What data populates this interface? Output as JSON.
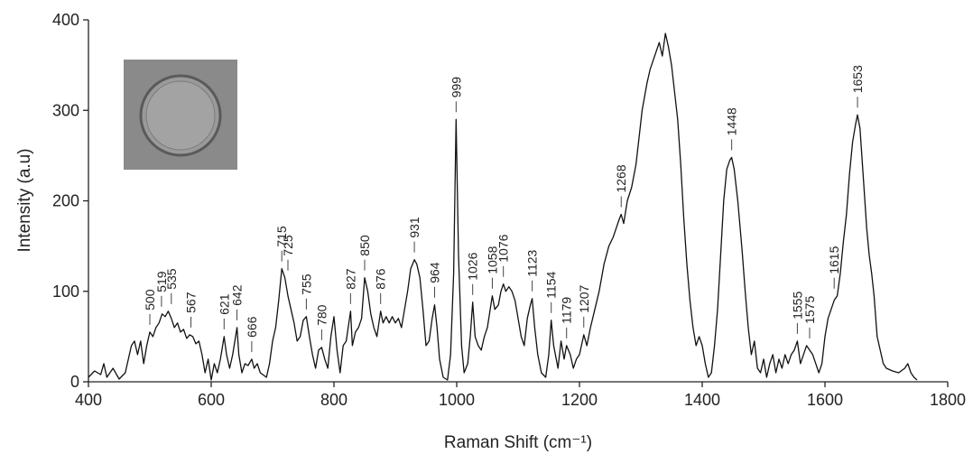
{
  "chart_data": {
    "type": "line",
    "x_label": "Raman Shift (cm⁻¹)",
    "y_label": "Intensity (a.u)",
    "color": "#111111",
    "xlim": [
      400,
      1800
    ],
    "xticks": [
      400,
      600,
      800,
      1000,
      1200,
      1400,
      1600,
      1800
    ],
    "ylim": [
      0,
      400
    ],
    "yticks": [
      0,
      100,
      200,
      300,
      400
    ],
    "x": [
      400,
      410,
      420,
      425,
      430,
      440,
      450,
      460,
      470,
      475,
      480,
      485,
      490,
      495,
      500,
      505,
      510,
      515,
      520,
      525,
      530,
      535,
      540,
      545,
      550,
      555,
      560,
      565,
      570,
      575,
      580,
      585,
      590,
      595,
      600,
      605,
      610,
      615,
      621,
      625,
      630,
      635,
      642,
      645,
      650,
      655,
      660,
      666,
      670,
      675,
      680,
      690,
      695,
      700,
      705,
      710,
      715,
      720,
      725,
      730,
      735,
      740,
      745,
      750,
      755,
      760,
      765,
      770,
      775,
      780,
      785,
      790,
      795,
      800,
      805,
      810,
      815,
      820,
      827,
      830,
      835,
      840,
      845,
      850,
      855,
      860,
      865,
      870,
      876,
      880,
      885,
      890,
      895,
      900,
      905,
      910,
      915,
      920,
      925,
      931,
      935,
      940,
      945,
      950,
      955,
      960,
      964,
      968,
      972,
      978,
      985,
      990,
      995,
      999,
      1003,
      1008,
      1012,
      1018,
      1022,
      1026,
      1030,
      1035,
      1040,
      1045,
      1050,
      1058,
      1062,
      1068,
      1072,
      1076,
      1080,
      1085,
      1090,
      1095,
      1100,
      1105,
      1110,
      1115,
      1120,
      1123,
      1127,
      1132,
      1138,
      1145,
      1150,
      1154,
      1158,
      1165,
      1170,
      1175,
      1179,
      1185,
      1190,
      1195,
      1200,
      1207,
      1212,
      1218,
      1225,
      1232,
      1240,
      1248,
      1255,
      1260,
      1265,
      1268,
      1272,
      1278,
      1285,
      1292,
      1298,
      1302,
      1306,
      1310,
      1315,
      1320,
      1325,
      1330,
      1335,
      1340,
      1345,
      1350,
      1355,
      1360,
      1365,
      1370,
      1375,
      1380,
      1385,
      1390,
      1395,
      1400,
      1405,
      1410,
      1415,
      1420,
      1425,
      1430,
      1435,
      1440,
      1445,
      1448,
      1452,
      1458,
      1465,
      1470,
      1475,
      1480,
      1485,
      1490,
      1495,
      1500,
      1505,
      1510,
      1515,
      1520,
      1525,
      1530,
      1535,
      1540,
      1545,
      1550,
      1555,
      1560,
      1565,
      1570,
      1575,
      1580,
      1585,
      1590,
      1595,
      1600,
      1605,
      1610,
      1615,
      1620,
      1625,
      1630,
      1635,
      1640,
      1645,
      1650,
      1653,
      1657,
      1662,
      1668,
      1672,
      1676,
      1680,
      1685,
      1690,
      1695,
      1700,
      1710,
      1720,
      1730,
      1735,
      1740,
      1745,
      1750
    ],
    "values": [
      5,
      12,
      8,
      20,
      5,
      15,
      3,
      10,
      40,
      45,
      30,
      45,
      20,
      40,
      55,
      50,
      60,
      65,
      75,
      72,
      78,
      70,
      60,
      65,
      55,
      58,
      48,
      52,
      50,
      42,
      45,
      30,
      10,
      25,
      2,
      20,
      10,
      25,
      50,
      30,
      15,
      30,
      60,
      30,
      10,
      20,
      18,
      25,
      15,
      20,
      10,
      5,
      20,
      45,
      60,
      90,
      125,
      115,
      95,
      80,
      65,
      45,
      50,
      68,
      72,
      50,
      30,
      15,
      35,
      38,
      25,
      15,
      50,
      72,
      35,
      10,
      40,
      45,
      78,
      40,
      55,
      60,
      70,
      115,
      100,
      75,
      60,
      50,
      78,
      65,
      72,
      65,
      72,
      65,
      70,
      60,
      80,
      100,
      125,
      135,
      130,
      115,
      80,
      40,
      45,
      70,
      85,
      60,
      25,
      5,
      2,
      30,
      120,
      290,
      140,
      40,
      10,
      20,
      50,
      88,
      50,
      40,
      35,
      50,
      60,
      95,
      80,
      85,
      100,
      108,
      100,
      105,
      100,
      90,
      70,
      50,
      40,
      70,
      85,
      92,
      60,
      30,
      10,
      5,
      30,
      68,
      40,
      15,
      45,
      25,
      40,
      30,
      15,
      25,
      30,
      52,
      40,
      60,
      80,
      100,
      130,
      150,
      160,
      170,
      180,
      185,
      175,
      200,
      215,
      240,
      275,
      300,
      315,
      330,
      345,
      355,
      365,
      375,
      360,
      385,
      370,
      350,
      320,
      290,
      240,
      180,
      130,
      90,
      60,
      40,
      50,
      40,
      20,
      5,
      10,
      40,
      80,
      140,
      200,
      235,
      245,
      248,
      235,
      200,
      145,
      100,
      60,
      30,
      45,
      15,
      10,
      25,
      5,
      20,
      30,
      10,
      25,
      15,
      30,
      20,
      30,
      35,
      45,
      20,
      30,
      40,
      35,
      30,
      20,
      10,
      20,
      50,
      70,
      80,
      90,
      95,
      120,
      155,
      185,
      230,
      265,
      285,
      295,
      280,
      230,
      170,
      140,
      120,
      95,
      50,
      35,
      20,
      15,
      12,
      10,
      15,
      20,
      10,
      5,
      2
    ],
    "peaks": [
      500,
      519,
      535,
      567,
      621,
      642,
      666,
      715,
      725,
      755,
      780,
      827,
      850,
      876,
      931,
      964,
      999,
      1026,
      1058,
      1076,
      1123,
      1154,
      1179,
      1207,
      1268,
      1448,
      1555,
      1575,
      1615,
      1653
    ]
  }
}
